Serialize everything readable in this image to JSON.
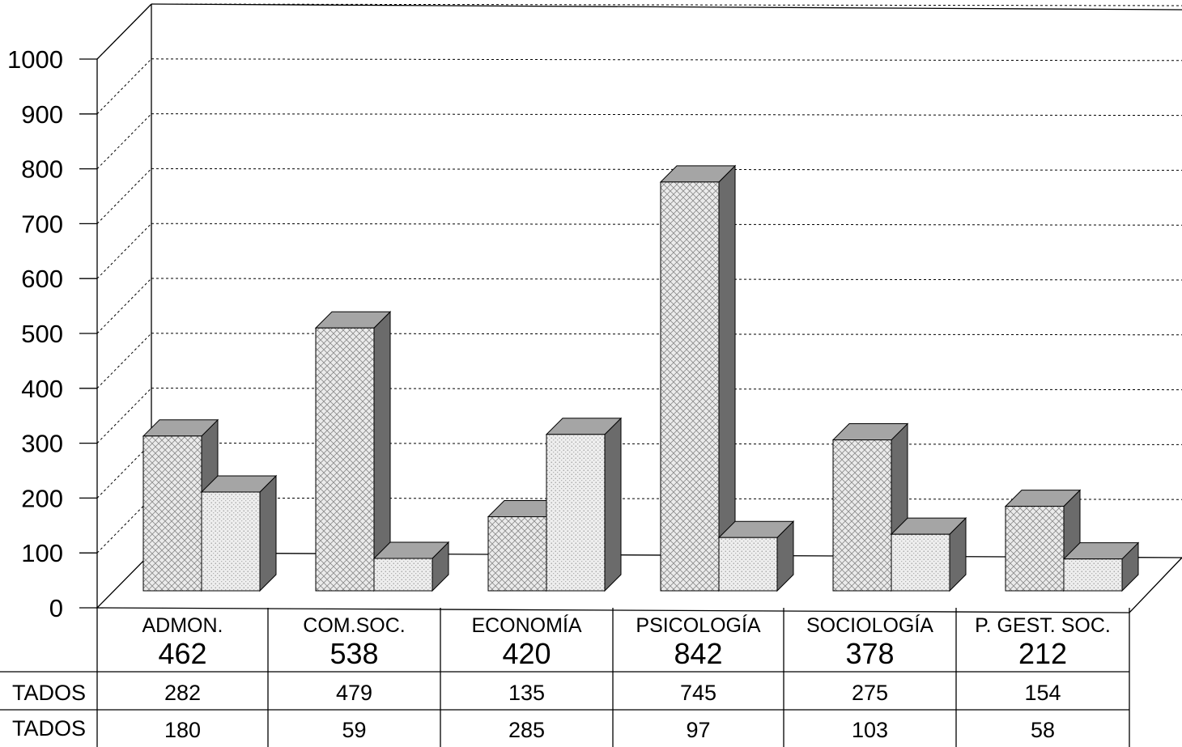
{
  "chart_data": {
    "type": "bar",
    "categories": [
      "ADMON.",
      "COM.SOC.",
      "ECONOMÍA",
      "PSICOLOGÍA",
      "SOCIOLOGÍA",
      "P. GEST. SOC."
    ],
    "totals": [
      "462",
      "538",
      "420",
      "842",
      "378",
      "212"
    ],
    "series": [
      {
        "row_label": "TADOS",
        "values": [
          282,
          479,
          135,
          745,
          275,
          154
        ],
        "pattern": "crosshatch"
      },
      {
        "row_label": "TADOS",
        "values": [
          180,
          59,
          285,
          97,
          103,
          58
        ],
        "pattern": "dotted"
      }
    ],
    "y_ticks": [
      "0",
      "100",
      "200",
      "300",
      "400",
      "500",
      "600",
      "700",
      "800",
      "900",
      "1000"
    ],
    "ylim": [
      0,
      1000
    ],
    "grid": true,
    "three_d": true,
    "colors": {
      "bar_face": "#ececec",
      "bar_top": "#a5a5a5",
      "bar_side": "#6b6b6b",
      "ink": "#000000"
    }
  }
}
